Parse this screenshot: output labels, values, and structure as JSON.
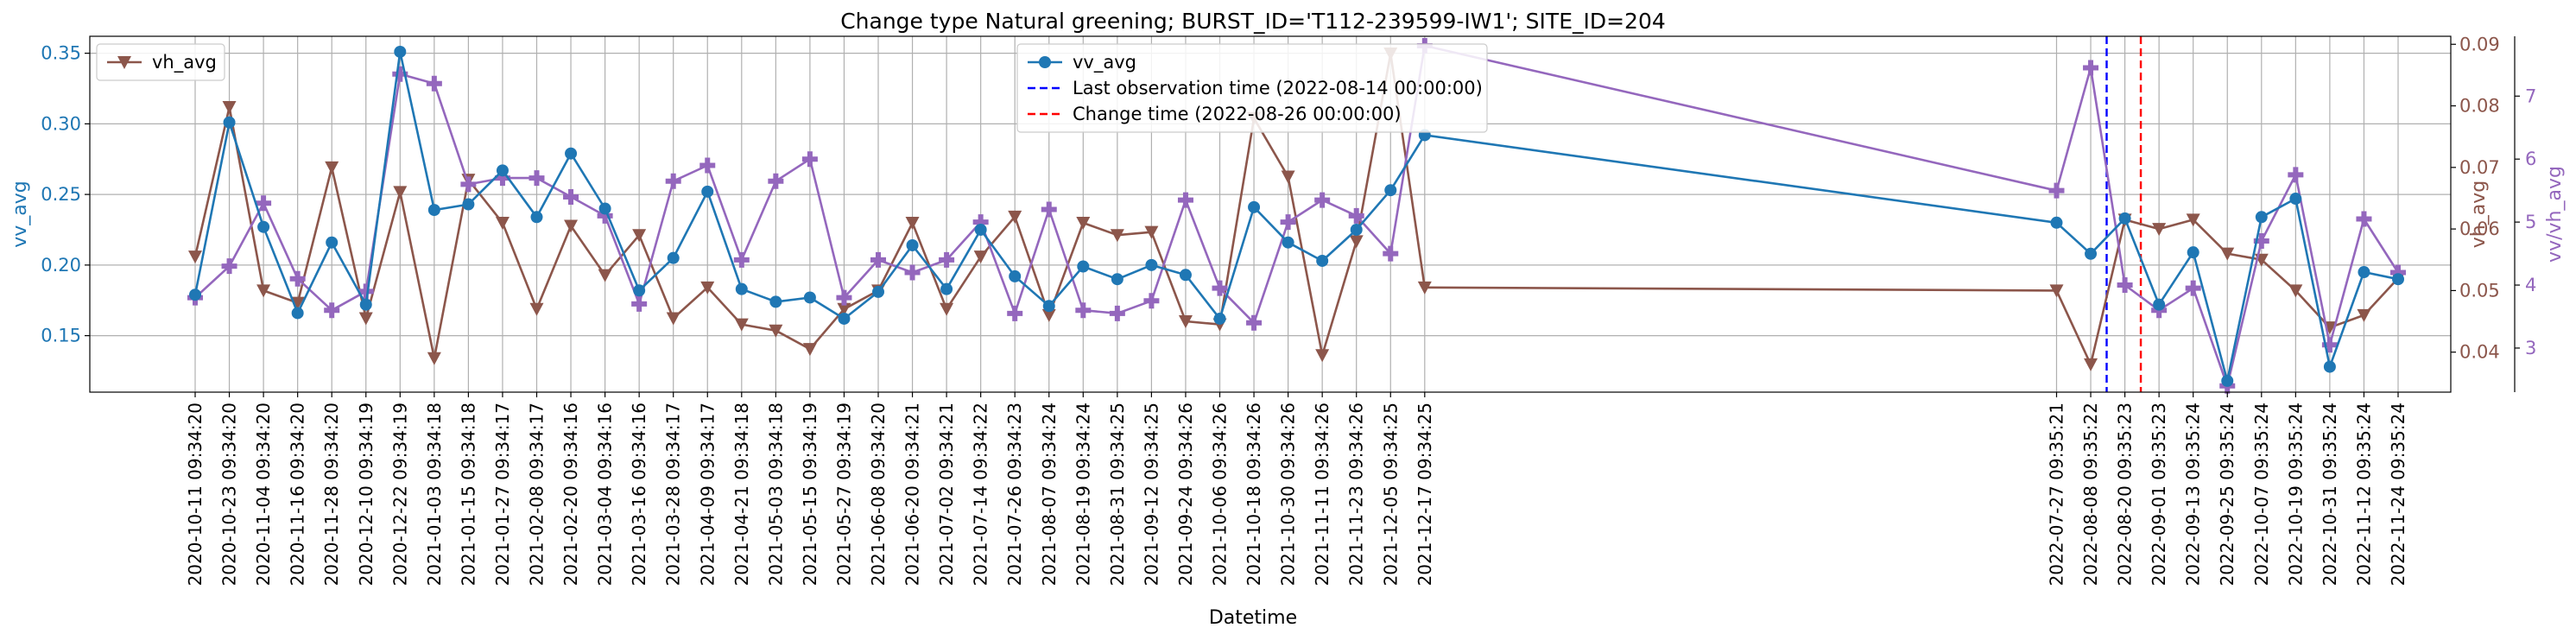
{
  "chart_data": {
    "type": "line",
    "title": "Change type Natural greening; BURST_ID='T112-239599-IW1'; SITE_ID=204",
    "xlabel": "Datetime",
    "x": [
      "2020-10-11 09:34:20",
      "2020-10-23 09:34:20",
      "2020-11-04 09:34:20",
      "2020-11-16 09:34:20",
      "2020-11-28 09:34:20",
      "2020-12-10 09:34:19",
      "2020-12-22 09:34:19",
      "2021-01-03 09:34:18",
      "2021-01-15 09:34:18",
      "2021-01-27 09:34:17",
      "2021-02-08 09:34:17",
      "2021-02-20 09:34:16",
      "2021-03-04 09:34:16",
      "2021-03-16 09:34:16",
      "2021-03-28 09:34:17",
      "2021-04-09 09:34:17",
      "2021-04-21 09:34:18",
      "2021-05-03 09:34:18",
      "2021-05-15 09:34:19",
      "2021-05-27 09:34:19",
      "2021-06-08 09:34:20",
      "2021-06-20 09:34:21",
      "2021-07-02 09:34:21",
      "2021-07-14 09:34:22",
      "2021-07-26 09:34:23",
      "2021-08-07 09:34:24",
      "2021-08-19 09:34:24",
      "2021-08-31 09:34:25",
      "2021-09-12 09:34:25",
      "2021-09-24 09:34:26",
      "2021-10-06 09:34:26",
      "2021-10-18 09:34:26",
      "2021-10-30 09:34:26",
      "2021-11-11 09:34:26",
      "2021-11-23 09:34:26",
      "2021-12-05 09:34:25",
      "2021-12-17 09:34:25",
      "2022-07-27 09:35:21",
      "2022-08-08 09:35:22",
      "2022-08-20 09:35:23",
      "2022-09-01 09:35:23",
      "2022-09-13 09:35:24",
      "2022-09-25 09:35:24",
      "2022-10-07 09:35:24",
      "2022-10-19 09:35:24",
      "2022-10-31 09:35:24",
      "2022-11-12 09:35:24",
      "2022-11-24 09:35:24"
    ],
    "axes": {
      "left": {
        "label": "vv_avg",
        "ylim": [
          0.11,
          0.362
        ],
        "ticks": [
          0.15,
          0.2,
          0.25,
          0.3,
          0.35
        ],
        "tick_labels": [
          "0.15",
          "0.20",
          "0.25",
          "0.30",
          "0.35"
        ],
        "color": "#1f77b4"
      },
      "right": {
        "label": "vh_avg",
        "ylim": [
          0.0335,
          0.0913
        ],
        "ticks": [
          0.04,
          0.05,
          0.06,
          0.07,
          0.08,
          0.09
        ],
        "tick_labels": [
          "0.04",
          "0.05",
          "0.06",
          "0.07",
          "0.08",
          "0.09"
        ],
        "color": "#8c564b"
      },
      "right2": {
        "label": "vv/vh_avg",
        "ylim": [
          2.3,
          7.95
        ],
        "ticks": [
          3,
          4,
          5,
          6,
          7
        ],
        "tick_labels": [
          "3",
          "4",
          "5",
          "6",
          "7"
        ],
        "color": "#9467bd"
      }
    },
    "grid": true,
    "series": [
      {
        "name": "vv_avg",
        "axis": "left",
        "color": "#1f77b4",
        "marker": "circle",
        "values": [
          0.179,
          0.301,
          0.227,
          0.166,
          0.216,
          0.172,
          0.351,
          0.239,
          0.243,
          0.267,
          0.234,
          0.279,
          0.24,
          0.182,
          0.205,
          0.252,
          0.183,
          0.174,
          0.177,
          0.162,
          0.181,
          0.214,
          0.183,
          0.225,
          0.192,
          0.171,
          0.199,
          0.19,
          0.2,
          0.193,
          0.162,
          0.241,
          0.216,
          0.203,
          0.225,
          0.253,
          0.292,
          0.23,
          0.208,
          0.233,
          0.172,
          0.209,
          0.118,
          0.234,
          0.247,
          0.128,
          0.195,
          0.19
        ]
      },
      {
        "name": "vh_avg",
        "axis": "right",
        "color": "#8c564b",
        "marker": "triangle-down",
        "values": [
          0.0555,
          0.0798,
          0.05,
          0.048,
          0.07,
          0.0455,
          0.066,
          0.039,
          0.068,
          0.061,
          0.047,
          0.0605,
          0.0525,
          0.059,
          0.0455,
          0.0505,
          0.0445,
          0.0435,
          0.0405,
          0.047,
          0.05,
          0.061,
          0.047,
          0.0555,
          0.062,
          0.046,
          0.061,
          0.059,
          0.0595,
          0.045,
          0.0445,
          0.078,
          0.0685,
          0.0395,
          0.058,
          0.0885,
          0.0505,
          0.05,
          0.038,
          0.0615,
          0.06,
          0.0615,
          0.056,
          0.055,
          0.05,
          0.044,
          0.046,
          0.052
        ]
      },
      {
        "name": "vv/vh_avg",
        "axis": "right2",
        "color": "#9467bd",
        "marker": "plus",
        "values": [
          3.8,
          4.3,
          5.3,
          4.1,
          3.6,
          3.9,
          7.35,
          7.2,
          5.6,
          5.7,
          5.7,
          5.4,
          5.1,
          3.7,
          5.65,
          5.9,
          4.4,
          5.65,
          6.0,
          3.8,
          4.4,
          4.2,
          4.4,
          5.0,
          3.55,
          5.2,
          3.6,
          3.55,
          3.75,
          5.35,
          3.95,
          3.4,
          5.0,
          5.35,
          5.1,
          4.5,
          7.8,
          5.5,
          7.45,
          4.0,
          3.6,
          3.95,
          2.4,
          4.7,
          5.75,
          3.05,
          5.05,
          4.2
        ]
      }
    ],
    "vlines": [
      {
        "label": "Last observation time (2022-08-14 00:00:00)",
        "date": "2022-08-14",
        "color": "#0000ff",
        "style": "dashed"
      },
      {
        "label": "Change time (2022-08-26 00:00:00)",
        "date": "2022-08-26",
        "color": "#ff0000",
        "style": "dashed"
      }
    ],
    "legends": [
      {
        "position": "upper-left",
        "entries": [
          "vh_avg"
        ]
      },
      {
        "position": "upper-center",
        "entries": [
          "vv_avg",
          "Last observation time (2022-08-14 00:00:00)",
          "Change time (2022-08-26 00:00:00)"
        ]
      }
    ]
  }
}
